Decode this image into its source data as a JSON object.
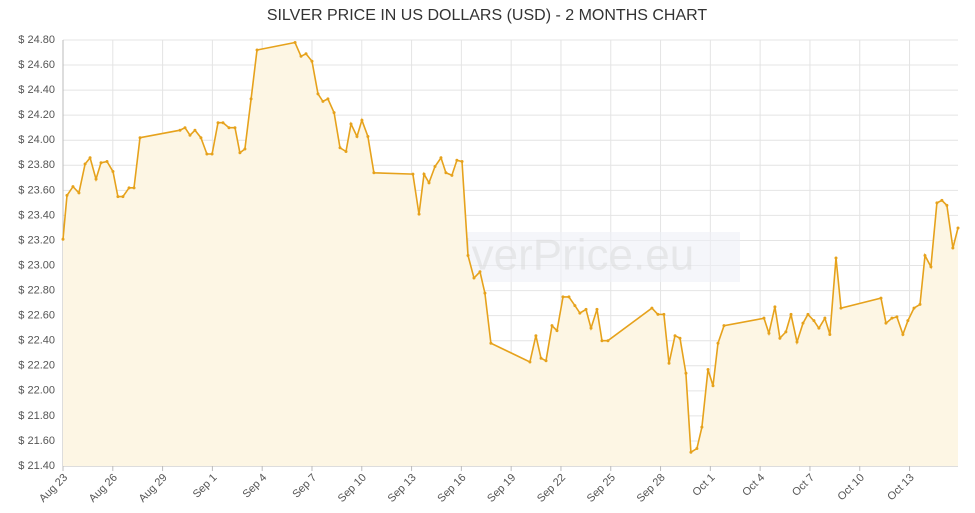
{
  "chart_data": {
    "type": "line",
    "title": "SILVER PRICE IN US DOLLARS (USD) - 2 MONTHS CHART",
    "watermark": "GoldSilverPrice.eu",
    "color": "#e6a21c",
    "fill": "#fdf6e4",
    "grid": true,
    "x": [
      0,
      0.24,
      0.6,
      0.96,
      1.33,
      1.63,
      1.99,
      2.29,
      2.65,
      3.01,
      3.31,
      3.61,
      3.98,
      4.28,
      4.64,
      7.05,
      7.35,
      7.65,
      7.95,
      8.31,
      8.67,
      8.98,
      9.34,
      9.64,
      10.0,
      10.36,
      10.66,
      10.96,
      11.33,
      11.69,
      13.98,
      14.34,
      14.64,
      15.0,
      15.36,
      15.66,
      15.96,
      16.33,
      16.69,
      17.05,
      17.35,
      17.71,
      18.01,
      18.37,
      18.73,
      21.08,
      21.45,
      21.75,
      22.05,
      22.41,
      22.77,
      23.07,
      23.43,
      23.73,
      24.04,
      24.4,
      24.76,
      25.12,
      25.42,
      25.78,
      28.13,
      28.49,
      28.8,
      29.1,
      29.46,
      29.76,
      30.12,
      30.48,
      30.84,
      31.14,
      31.51,
      31.81,
      32.17,
      32.47,
      32.83,
      35.48,
      35.84,
      36.2,
      36.51,
      36.87,
      37.17,
      37.53,
      37.83,
      38.19,
      38.49,
      38.86,
      39.16,
      39.46,
      39.82,
      42.23,
      42.53,
      42.89,
      43.19,
      43.55,
      43.86,
      44.22,
      44.58,
      44.88,
      45.24,
      45.54,
      45.9,
      46.2,
      46.57,
      46.87,
      49.28,
      49.58,
      49.94,
      50.24,
      50.6,
      50.9,
      51.27,
      51.63,
      51.93,
      52.29,
      52.65,
      52.95,
      53.25,
      53.61,
      53.92
    ],
    "values": [
      23.21,
      23.56,
      23.63,
      23.58,
      23.81,
      23.86,
      23.69,
      23.82,
      23.83,
      23.75,
      23.55,
      23.55,
      23.62,
      23.62,
      24.02,
      24.08,
      24.1,
      24.04,
      24.08,
      24.02,
      23.89,
      23.89,
      24.14,
      24.14,
      24.1,
      24.1,
      23.9,
      23.93,
      24.33,
      24.72,
      24.78,
      24.67,
      24.69,
      24.63,
      24.37,
      24.31,
      24.33,
      24.22,
      23.94,
      23.91,
      24.13,
      24.03,
      24.16,
      24.03,
      23.74,
      23.73,
      23.41,
      23.73,
      23.66,
      23.79,
      23.86,
      23.74,
      23.72,
      23.84,
      23.83,
      23.08,
      22.9,
      22.95,
      22.78,
      22.38,
      22.23,
      22.44,
      22.26,
      22.24,
      22.52,
      22.48,
      22.75,
      22.75,
      22.68,
      22.62,
      22.65,
      22.5,
      22.65,
      22.4,
      22.4,
      22.66,
      22.61,
      22.61,
      22.22,
      22.44,
      22.42,
      22.14,
      21.51,
      21.54,
      21.71,
      22.17,
      22.04,
      22.38,
      22.52,
      22.58,
      22.46,
      22.67,
      22.42,
      22.47,
      22.61,
      22.39,
      22.54,
      22.61,
      22.56,
      22.5,
      22.58,
      22.45,
      23.06,
      22.66,
      22.74,
      22.54,
      22.58,
      22.59,
      22.45,
      22.56,
      22.66,
      22.69,
      23.08,
      22.99,
      23.5,
      23.52,
      23.48,
      23.14,
      23.3
    ],
    "xlim": [
      0,
      53.92
    ],
    "xticks": [
      {
        "value": 0,
        "label": "Aug 23"
      },
      {
        "value": 3,
        "label": "Aug 26"
      },
      {
        "value": 6,
        "label": "Aug 29"
      },
      {
        "value": 9,
        "label": "Sep 1"
      },
      {
        "value": 12,
        "label": "Sep 4"
      },
      {
        "value": 15,
        "label": "Sep 7"
      },
      {
        "value": 18,
        "label": "Sep 10"
      },
      {
        "value": 21,
        "label": "Sep 13"
      },
      {
        "value": 24,
        "label": "Sep 16"
      },
      {
        "value": 27,
        "label": "Sep 19"
      },
      {
        "value": 30,
        "label": "Sep 22"
      },
      {
        "value": 33,
        "label": "Sep 25"
      },
      {
        "value": 36,
        "label": "Sep 28"
      },
      {
        "value": 39,
        "label": "Oct 1"
      },
      {
        "value": 42,
        "label": "Oct 4"
      },
      {
        "value": 45,
        "label": "Oct 7"
      },
      {
        "value": 48,
        "label": "Oct 10"
      },
      {
        "value": 51,
        "label": "Oct 13"
      }
    ],
    "ylim": [
      21.4,
      24.8
    ],
    "yticks": [
      {
        "value": 21.4,
        "label": "$ 21.40"
      },
      {
        "value": 21.6,
        "label": "$ 21.60"
      },
      {
        "value": 21.8,
        "label": "$ 21.80"
      },
      {
        "value": 22.0,
        "label": "$ 22.00"
      },
      {
        "value": 22.2,
        "label": "$ 22.20"
      },
      {
        "value": 22.4,
        "label": "$ 22.40"
      },
      {
        "value": 22.6,
        "label": "$ 22.60"
      },
      {
        "value": 22.8,
        "label": "$ 22.80"
      },
      {
        "value": 23.0,
        "label": "$ 23.00"
      },
      {
        "value": 23.2,
        "label": "$ 23.20"
      },
      {
        "value": 23.4,
        "label": "$ 23.40"
      },
      {
        "value": 23.6,
        "label": "$ 23.60"
      },
      {
        "value": 23.8,
        "label": "$ 23.80"
      },
      {
        "value": 24.0,
        "label": "$ 24.00"
      },
      {
        "value": 24.2,
        "label": "$ 24.20"
      },
      {
        "value": 24.4,
        "label": "$ 24.40"
      },
      {
        "value": 24.6,
        "label": "$ 24.60"
      },
      {
        "value": 24.8,
        "label": "$ 24.80"
      }
    ]
  }
}
